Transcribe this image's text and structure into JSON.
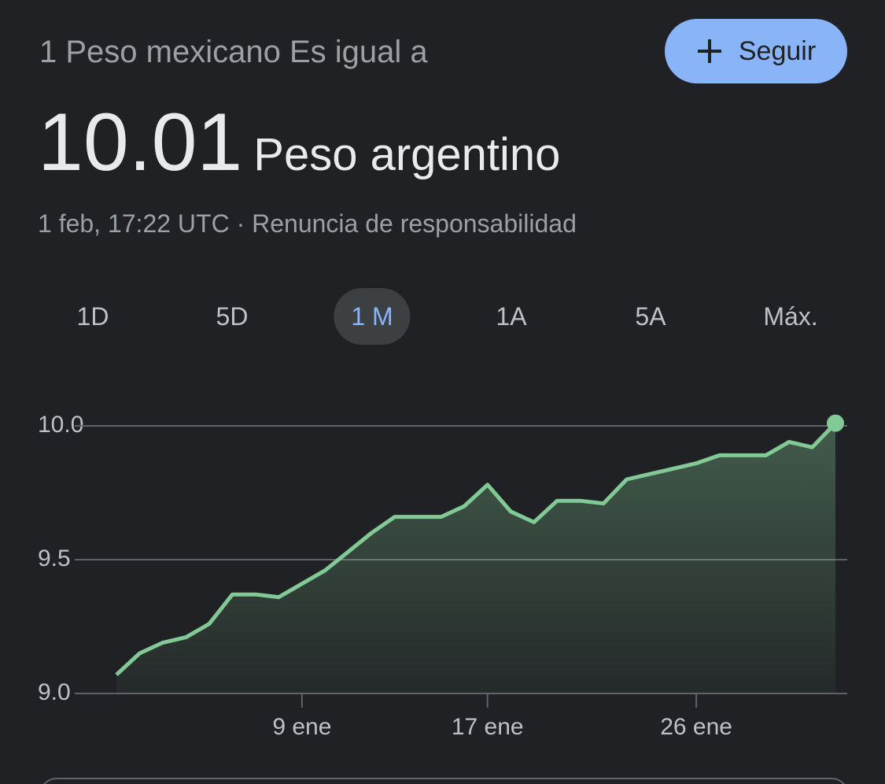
{
  "header": {
    "title": "1 Peso mexicano Es igual a",
    "button": "Seguir",
    "value": "10.01",
    "unit": "Peso argentino",
    "subtitle": "1 feb, 17:22 UTC · Renuncia de responsabilidad"
  },
  "tabs": {
    "items": [
      "1D",
      "5D",
      "1 M",
      "1A",
      "5A",
      "Máx."
    ],
    "selected": 2
  },
  "chart_data": {
    "type": "area",
    "color": "#81c995",
    "categories": [
      null,
      null,
      null,
      null,
      null,
      null,
      null,
      null,
      "9 ene",
      null,
      null,
      null,
      null,
      null,
      null,
      null,
      "17 ene",
      null,
      null,
      null,
      null,
      null,
      null,
      null,
      null,
      "26 ene",
      null,
      null,
      null,
      null,
      null,
      null
    ],
    "values": [
      9.07,
      9.15,
      9.19,
      9.21,
      9.26,
      9.37,
      9.37,
      9.36,
      9.41,
      9.46,
      9.53,
      9.6,
      9.66,
      9.66,
      9.66,
      9.7,
      9.78,
      9.68,
      9.64,
      9.72,
      9.72,
      9.71,
      9.8,
      9.82,
      9.84,
      9.86,
      9.89,
      9.89,
      9.89,
      9.94,
      9.92,
      10.01
    ],
    "ylim": [
      9.0,
      10.0
    ],
    "yticks": [
      {
        "value": 9.0,
        "label": "9.0"
      },
      9.5,
      {
        "value": 10.0,
        "label": "10.0"
      }
    ],
    "grid": true
  }
}
